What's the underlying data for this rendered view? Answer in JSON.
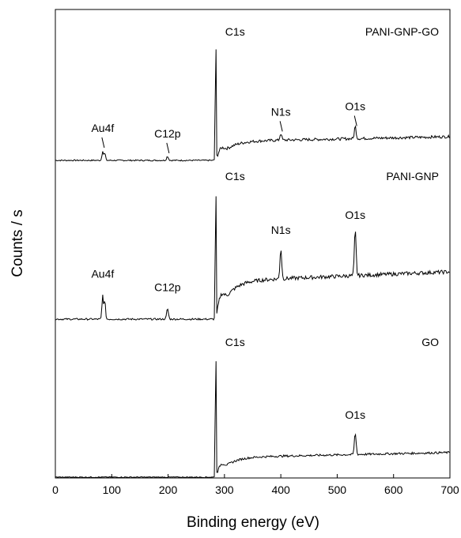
{
  "chart_data": {
    "type": "line",
    "title": "",
    "xlabel": "Binding energy (eV)",
    "ylabel": "Counts / s",
    "xlim": [
      0,
      700
    ],
    "x_ticks": [
      0,
      100,
      200,
      300,
      400,
      500,
      600,
      700
    ],
    "y_ticks": [],
    "grid": false,
    "series": [
      {
        "name": "PANI-GNP-GO",
        "peaks": [
          {
            "label": "Au4f",
            "x": 84,
            "height": 0.07
          },
          {
            "label": "C12p",
            "x": 199,
            "height": 0.03
          },
          {
            "label": "C1s",
            "x": 284.5,
            "height": 1.0
          },
          {
            "label": "N1s",
            "x": 400,
            "height": 0.05
          },
          {
            "label": "O1s",
            "x": 532,
            "height": 0.09
          }
        ]
      },
      {
        "name": "PANI-GNP",
        "peaks": [
          {
            "label": "Au4f",
            "x": 84,
            "height": 0.16
          },
          {
            "label": "C12p",
            "x": 199,
            "height": 0.07
          },
          {
            "label": "C1s",
            "x": 284.5,
            "height": 1.0
          },
          {
            "label": "N1s",
            "x": 400,
            "height": 0.2
          },
          {
            "label": "O1s",
            "x": 532,
            "height": 0.3
          }
        ]
      },
      {
        "name": "GO",
        "peaks": [
          {
            "label": "C1s",
            "x": 284.5,
            "height": 1.0
          },
          {
            "label": "O1s",
            "x": 532,
            "height": 0.15
          }
        ]
      }
    ]
  }
}
